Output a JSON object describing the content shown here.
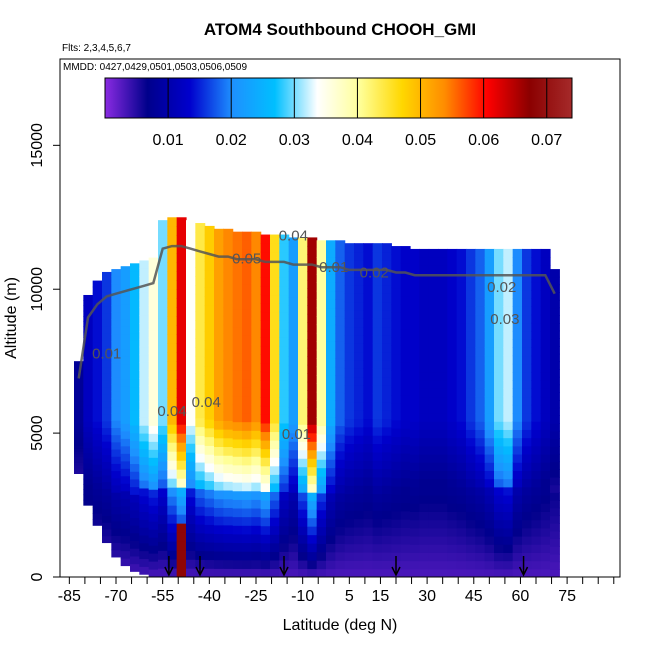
{
  "chart_data": {
    "type": "heatmap",
    "title": "ATOM4 Southbound CHOOH_GMI",
    "subtitle_flights": "Flts: 2,3,4,5,6,7",
    "subtitle_dates": "MMDD: 0427,0429,0501,0503,0506,0509",
    "xlabel": "Latitude (deg N)",
    "ylabel": "Altitude (m)",
    "xlim": [
      -88,
      92
    ],
    "ylim": [
      0,
      18000
    ],
    "x_tick_labels": [
      "-85",
      "-70",
      "-55",
      "-40",
      "-25",
      "-10",
      "5",
      "15",
      "30",
      "45",
      "60",
      "75"
    ],
    "x_ticks": [
      -85,
      -70,
      -55,
      -40,
      -25,
      -10,
      5,
      15,
      30,
      45,
      60,
      75
    ],
    "y_ticks": [
      0,
      5000,
      10000,
      15000
    ],
    "y_tick_labels": [
      "0",
      "5000",
      "10000",
      "15000"
    ],
    "colorbar": {
      "range": [
        0.0,
        0.074
      ],
      "ticks": [
        0.01,
        0.02,
        0.03,
        0.04,
        0.05,
        0.06,
        0.07
      ],
      "tick_labels": [
        "0.01",
        "0.02",
        "0.03",
        "0.04",
        "0.05",
        "0.06",
        "0.07"
      ],
      "colors": [
        "#8a2be2",
        "#00008b",
        "#0000cd",
        "#1e90ff",
        "#00bfff",
        "#ffffff",
        "#ffff99",
        "#ffd700",
        "#ff8c00",
        "#ff0000",
        "#8b0000",
        "#a52a2a"
      ]
    },
    "contour_labels": [
      {
        "text": "0.04",
        "lat": -13,
        "alt": 11700
      },
      {
        "text": "0.05",
        "lat": -28,
        "alt": 10900
      },
      {
        "text": "0.01",
        "lat": -73,
        "alt": 7600
      },
      {
        "text": "0.04",
        "lat": -52,
        "alt": 5600
      },
      {
        "text": "0.04",
        "lat": -41,
        "alt": 5900
      },
      {
        "text": "0.01",
        "lat": -12,
        "alt": 4800
      },
      {
        "text": "0.01",
        "lat": 0,
        "alt": 10600
      },
      {
        "text": "0.02",
        "lat": 13,
        "alt": 10400
      },
      {
        "text": "0.02",
        "lat": 54,
        "alt": 9900
      },
      {
        "text": "0.03",
        "lat": 55,
        "alt": 8800
      }
    ],
    "flight_arrows_lat": [
      -53,
      -43,
      -16,
      20,
      61
    ],
    "profiles": [
      {
        "lat": -82,
        "bottom": 3600,
        "top": 7500,
        "value": 0.008
      },
      {
        "lat": -79,
        "bottom": 2500,
        "top": 9800,
        "value": 0.012
      },
      {
        "lat": -76,
        "bottom": 1800,
        "top": 10300,
        "value": 0.014
      },
      {
        "lat": -73,
        "bottom": 1200,
        "top": 10600,
        "value": 0.016
      },
      {
        "lat": -70,
        "bottom": 700,
        "top": 10700,
        "value": 0.02
      },
      {
        "lat": -67,
        "bottom": 400,
        "top": 10800,
        "value": 0.022
      },
      {
        "lat": -64,
        "bottom": 200,
        "top": 10900,
        "value": 0.026
      },
      {
        "lat": -61,
        "bottom": 100,
        "top": 11000,
        "value": 0.032
      },
      {
        "lat": -58,
        "bottom": 0,
        "top": 11100,
        "value": 0.036
      },
      {
        "lat": -55,
        "bottom": 0,
        "top": 12400,
        "value": 0.03
      },
      {
        "lat": -52,
        "bottom": 0,
        "top": 12500,
        "value": 0.05
      },
      {
        "lat": -49,
        "bottom": 0,
        "top": 12500,
        "value": 0.062
      },
      {
        "lat": -46,
        "bottom": 0,
        "top": 12400,
        "value": 0.034
      },
      {
        "lat": -43,
        "bottom": 0,
        "top": 12300,
        "value": 0.044
      },
      {
        "lat": -40,
        "bottom": 0,
        "top": 12200,
        "value": 0.048
      },
      {
        "lat": -37,
        "bottom": 0,
        "top": 12100,
        "value": 0.052
      },
      {
        "lat": -34,
        "bottom": 0,
        "top": 12100,
        "value": 0.054
      },
      {
        "lat": -31,
        "bottom": 0,
        "top": 12000,
        "value": 0.055
      },
      {
        "lat": -28,
        "bottom": 0,
        "top": 12000,
        "value": 0.056
      },
      {
        "lat": -25,
        "bottom": 0,
        "top": 12000,
        "value": 0.054
      },
      {
        "lat": -22,
        "bottom": 0,
        "top": 11900,
        "value": 0.06
      },
      {
        "lat": -19,
        "bottom": 0,
        "top": 11900,
        "value": 0.046
      },
      {
        "lat": -16,
        "bottom": 0,
        "top": 11900,
        "value": 0.028
      },
      {
        "lat": -13,
        "bottom": 0,
        "top": 11800,
        "value": 0.022
      },
      {
        "lat": -10,
        "bottom": 0,
        "top": 11800,
        "value": 0.042
      },
      {
        "lat": -7,
        "bottom": 0,
        "top": 11800,
        "value": 0.066
      },
      {
        "lat": -4,
        "bottom": 0,
        "top": 11700,
        "value": 0.04
      },
      {
        "lat": -1,
        "bottom": 0,
        "top": 11700,
        "value": 0.024
      },
      {
        "lat": 2,
        "bottom": 0,
        "top": 11700,
        "value": 0.018
      },
      {
        "lat": 5,
        "bottom": 0,
        "top": 11600,
        "value": 0.016
      },
      {
        "lat": 8,
        "bottom": 0,
        "top": 11600,
        "value": 0.015
      },
      {
        "lat": 11,
        "bottom": 0,
        "top": 11600,
        "value": 0.014
      },
      {
        "lat": 14,
        "bottom": 0,
        "top": 11600,
        "value": 0.016
      },
      {
        "lat": 17,
        "bottom": 0,
        "top": 11600,
        "value": 0.015
      },
      {
        "lat": 20,
        "bottom": 0,
        "top": 11500,
        "value": 0.014
      },
      {
        "lat": 23,
        "bottom": 0,
        "top": 11500,
        "value": 0.013
      },
      {
        "lat": 26,
        "bottom": 0,
        "top": 11400,
        "value": 0.013
      },
      {
        "lat": 29,
        "bottom": 0,
        "top": 11400,
        "value": 0.012
      },
      {
        "lat": 32,
        "bottom": 0,
        "top": 11400,
        "value": 0.012
      },
      {
        "lat": 35,
        "bottom": 0,
        "top": 11400,
        "value": 0.012
      },
      {
        "lat": 38,
        "bottom": 0,
        "top": 11400,
        "value": 0.013
      },
      {
        "lat": 41,
        "bottom": 0,
        "top": 11400,
        "value": 0.014
      },
      {
        "lat": 44,
        "bottom": 0,
        "top": 11400,
        "value": 0.016
      },
      {
        "lat": 47,
        "bottom": 0,
        "top": 11400,
        "value": 0.018
      },
      {
        "lat": 50,
        "bottom": 0,
        "top": 11400,
        "value": 0.022
      },
      {
        "lat": 53,
        "bottom": 0,
        "top": 11400,
        "value": 0.03
      },
      {
        "lat": 56,
        "bottom": 0,
        "top": 11400,
        "value": 0.032
      },
      {
        "lat": 59,
        "bottom": 0,
        "top": 11400,
        "value": 0.02
      },
      {
        "lat": 62,
        "bottom": 0,
        "top": 11400,
        "value": 0.016
      },
      {
        "lat": 65,
        "bottom": 0,
        "top": 11400,
        "value": 0.014
      },
      {
        "lat": 68,
        "bottom": 0,
        "top": 11400,
        "value": 0.012
      },
      {
        "lat": 71,
        "bottom": 0,
        "top": 10700,
        "value": 0.01
      }
    ]
  }
}
